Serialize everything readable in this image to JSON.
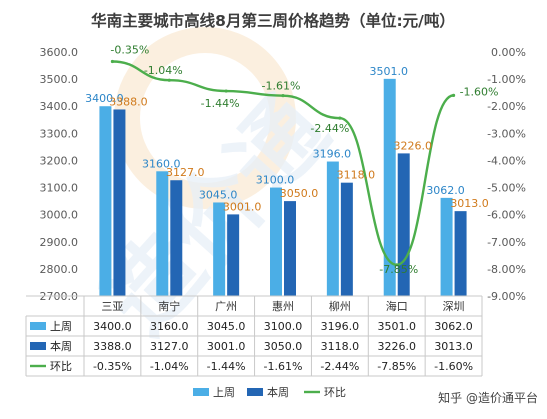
{
  "chart_data": {
    "type": "bar",
    "title": "华南主要城市高线8月第三周价格趋势（单位:元/吨）",
    "categories": [
      "三亚",
      "南宁",
      "广州",
      "惠州",
      "柳州",
      "海口",
      "深圳"
    ],
    "series": [
      {
        "name": "上周",
        "kind": "bar",
        "axis": "left",
        "color": "#4baee6",
        "values": [
          3400.0,
          3160.0,
          3045.0,
          3100.0,
          3196.0,
          3501.0,
          3062.0
        ],
        "labels": [
          "3400.0",
          "3160.0",
          "3045.0",
          "3100.0",
          "3196.0",
          "3501.0",
          "3062.0"
        ]
      },
      {
        "name": "本周",
        "kind": "bar",
        "axis": "left",
        "color": "#2366b4",
        "values": [
          3388.0,
          3127.0,
          3001.0,
          3050.0,
          3118.0,
          3226.0,
          3013.0
        ],
        "labels": [
          "3388.0",
          "3127.0",
          "3001.0",
          "3050.0",
          "3118.0",
          "3226.0",
          "3013.0"
        ]
      },
      {
        "name": "环比",
        "kind": "line",
        "axis": "right",
        "color": "#4cae4c",
        "values": [
          -0.35,
          -1.04,
          -1.44,
          -1.61,
          -2.44,
          -7.85,
          -1.6
        ],
        "labels": [
          "-0.35%",
          "-1.04%",
          "-1.44%",
          "-1.61%",
          "-2.44%",
          "-7.85%",
          "-1.60%"
        ]
      }
    ],
    "y_left": {
      "min": 2700,
      "max": 3600,
      "step": 100,
      "ticks": [
        "3600.0",
        "3500.0",
        "3400.0",
        "3300.0",
        "3200.0",
        "3100.0",
        "3000.0",
        "2900.0",
        "2800.0",
        "2700.0"
      ]
    },
    "y_right": {
      "min": -9,
      "max": 0,
      "step": 1,
      "ticks": [
        "0.00%",
        "-1.00%",
        "-2.00%",
        "-3.00%",
        "-4.00%",
        "-5.00%",
        "-6.00%",
        "-7.00%",
        "-8.00%",
        "-9.00%"
      ]
    },
    "grid": false,
    "legend_position": "bottom",
    "data_table": true
  },
  "watermark_text": "造价通",
  "source_credit": "知乎 @造价通平台"
}
